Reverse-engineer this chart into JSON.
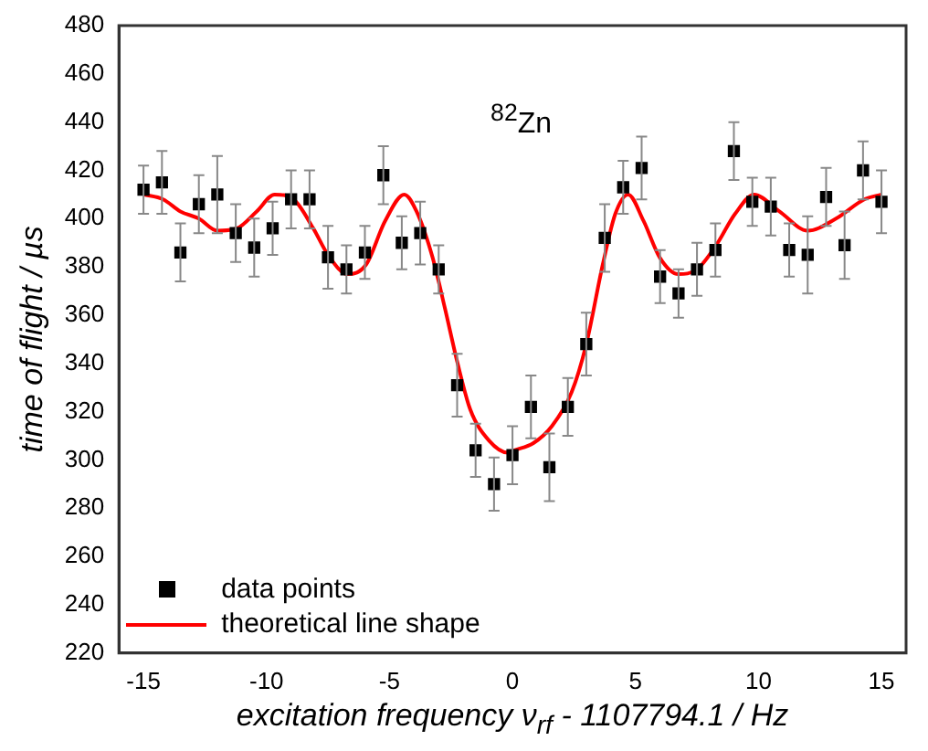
{
  "chart_data": {
    "type": "scatter",
    "xlabel": "excitation frequency ν$_{rf}$ - 1107794.1 / Hz",
    "ylabel": "time of flight / µs",
    "annotations": [
      "$^{82}$Zn"
    ],
    "xlim": [
      -16,
      16
    ],
    "xticks": [
      -15,
      -10,
      -5,
      0,
      5,
      10,
      15
    ],
    "ylim": [
      220,
      480
    ],
    "yticks": [
      220,
      240,
      260,
      280,
      300,
      320,
      340,
      360,
      380,
      400,
      420,
      440,
      460,
      480
    ],
    "grid": false,
    "legend": "bottom left",
    "x": [
      -15,
      -14.25,
      -13.5,
      -12.75,
      -12,
      -11.25,
      -10.5,
      -9.75,
      -9,
      -8.25,
      -7.5,
      -6.75,
      -6,
      -5.25,
      -4.5,
      -3.75,
      -3,
      -2.25,
      -1.5,
      -0.75,
      0,
      0.75,
      1.5,
      2.25,
      3,
      3.75,
      4.5,
      5.25,
      6,
      6.75,
      7.5,
      8.25,
      9,
      9.75,
      10.5,
      11.25,
      12,
      12.75,
      13.5,
      14.25,
      15
    ],
    "series": [
      {
        "name": "data points",
        "marker": "square",
        "color": "#000000",
        "values": [
          412,
          415,
          386,
          406,
          410,
          394,
          388,
          396,
          408,
          408,
          384,
          379,
          386,
          418,
          390,
          394,
          379,
          331,
          304,
          290,
          302,
          322,
          297,
          322,
          348,
          392,
          413,
          421,
          376,
          369,
          379,
          387,
          428,
          407,
          405,
          387,
          385,
          409,
          389,
          420,
          407
        ],
        "errors": [
          10,
          13,
          12,
          12,
          16,
          12,
          12,
          11,
          12,
          12,
          13,
          10,
          11,
          12,
          11,
          13,
          10,
          13,
          11,
          11,
          12,
          13,
          14,
          12,
          13,
          14,
          11,
          13,
          11,
          10,
          11,
          11,
          12,
          10,
          12,
          11,
          16,
          12,
          14,
          12,
          13
        ]
      },
      {
        "name": "theoretical line shape",
        "type": "line",
        "marker": "none",
        "color": "#ff0000",
        "line_style": "solid",
        "x": [
          -15,
          -14.2,
          -13.5,
          -12.75,
          -12,
          -11.2,
          -10.4,
          -9.67,
          -8.9,
          -8.1,
          -7.5,
          -6.7,
          -5.95,
          -5.18,
          -4.4,
          -3.9,
          -3.25,
          -2.75,
          -2.23,
          -1.72,
          -0.95,
          -0.18,
          0.08,
          0.85,
          1.6,
          2.4,
          3,
          3.67,
          4.18,
          4.7,
          5.33,
          5.98,
          6.74,
          7.5,
          8.28,
          9.05,
          9.82,
          10.85,
          12,
          13.15,
          14.3,
          15
        ],
        "values": [
          410,
          408,
          403,
          400,
          395,
          396,
          403,
          410,
          408,
          396,
          385,
          377,
          381,
          399,
          410,
          403,
          384,
          363,
          340,
          321,
          308,
          303,
          304,
          307,
          314,
          328,
          348,
          381,
          402,
          410,
          399,
          384,
          377,
          379,
          389,
          402,
          410,
          403,
          395,
          400,
          408,
          410
        ]
      }
    ]
  }
}
